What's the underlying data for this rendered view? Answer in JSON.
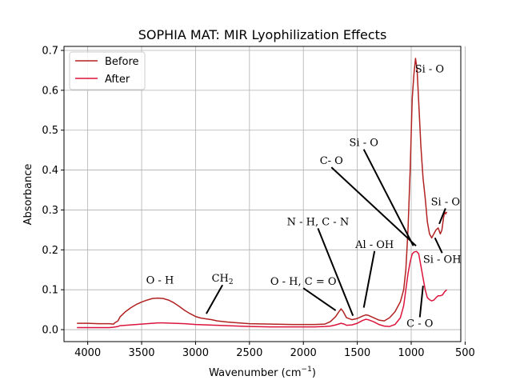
{
  "chart_data": {
    "type": "line",
    "title": "SOPHIA MAT: MIR Lyophilization Effects",
    "xlabel": "Wavenumber (cm",
    "xlabel_sup": "−1",
    "xlabel_close": ")",
    "ylabel": "Absorbance",
    "xlim": [
      4220,
      540
    ],
    "ylim": [
      -0.03,
      0.71
    ],
    "x_reversed": true,
    "grid": true,
    "legend_position": "top-left",
    "x_ticks": [
      4000,
      3500,
      3000,
      2500,
      2000,
      1500,
      1000,
      500
    ],
    "x_tick_labels": [
      "4000",
      "3500",
      "3000",
      "2500",
      "2000",
      "1500",
      "1000",
      "500"
    ],
    "y_ticks": [
      0.0,
      0.1,
      0.2,
      0.3,
      0.4,
      0.5,
      0.6,
      0.7
    ],
    "y_tick_labels": [
      "0.0",
      "0.1",
      "0.2",
      "0.3",
      "0.4",
      "0.5",
      "0.6",
      "0.7"
    ],
    "series": [
      {
        "name": "Before",
        "color": "#b22222",
        "points": [
          [
            4100,
            0.016
          ],
          [
            4000,
            0.016
          ],
          [
            3900,
            0.015
          ],
          [
            3800,
            0.015
          ],
          [
            3760,
            0.014
          ],
          [
            3750,
            0.017
          ],
          [
            3720,
            0.022
          ],
          [
            3700,
            0.032
          ],
          [
            3650,
            0.045
          ],
          [
            3600,
            0.055
          ],
          [
            3550,
            0.063
          ],
          [
            3500,
            0.069
          ],
          [
            3450,
            0.074
          ],
          [
            3400,
            0.078
          ],
          [
            3350,
            0.079
          ],
          [
            3300,
            0.078
          ],
          [
            3250,
            0.074
          ],
          [
            3200,
            0.067
          ],
          [
            3150,
            0.058
          ],
          [
            3100,
            0.048
          ],
          [
            3050,
            0.04
          ],
          [
            3000,
            0.033
          ],
          [
            2950,
            0.029
          ],
          [
            2900,
            0.027
          ],
          [
            2850,
            0.025
          ],
          [
            2800,
            0.022
          ],
          [
            2700,
            0.019
          ],
          [
            2600,
            0.017
          ],
          [
            2500,
            0.015
          ],
          [
            2300,
            0.014
          ],
          [
            2100,
            0.013
          ],
          [
            1900,
            0.013
          ],
          [
            1800,
            0.014
          ],
          [
            1750,
            0.02
          ],
          [
            1700,
            0.033
          ],
          [
            1670,
            0.045
          ],
          [
            1650,
            0.052
          ],
          [
            1630,
            0.045
          ],
          [
            1600,
            0.03
          ],
          [
            1550,
            0.025
          ],
          [
            1500,
            0.028
          ],
          [
            1450,
            0.034
          ],
          [
            1420,
            0.037
          ],
          [
            1400,
            0.036
          ],
          [
            1350,
            0.03
          ],
          [
            1300,
            0.024
          ],
          [
            1250,
            0.022
          ],
          [
            1200,
            0.03
          ],
          [
            1150,
            0.045
          ],
          [
            1100,
            0.07
          ],
          [
            1070,
            0.1
          ],
          [
            1050,
            0.15
          ],
          [
            1030,
            0.25
          ],
          [
            1010,
            0.4
          ],
          [
            990,
            0.58
          ],
          [
            975,
            0.64
          ],
          [
            960,
            0.68
          ],
          [
            945,
            0.65
          ],
          [
            930,
            0.57
          ],
          [
            910,
            0.46
          ],
          [
            890,
            0.38
          ],
          [
            870,
            0.33
          ],
          [
            850,
            0.27
          ],
          [
            830,
            0.24
          ],
          [
            810,
            0.23
          ],
          [
            790,
            0.24
          ],
          [
            770,
            0.25
          ],
          [
            750,
            0.255
          ],
          [
            730,
            0.24
          ],
          [
            715,
            0.25
          ],
          [
            700,
            0.28
          ],
          [
            690,
            0.295
          ],
          [
            680,
            0.29
          ],
          [
            670,
            0.295
          ]
        ]
      },
      {
        "name": "After",
        "color": "#dc143c",
        "points": [
          [
            4100,
            0.005
          ],
          [
            4000,
            0.005
          ],
          [
            3900,
            0.005
          ],
          [
            3800,
            0.005
          ],
          [
            3760,
            0.006
          ],
          [
            3720,
            0.008
          ],
          [
            3700,
            0.01
          ],
          [
            3600,
            0.012
          ],
          [
            3500,
            0.014
          ],
          [
            3400,
            0.016
          ],
          [
            3350,
            0.017
          ],
          [
            3300,
            0.017
          ],
          [
            3200,
            0.016
          ],
          [
            3100,
            0.015
          ],
          [
            3000,
            0.013
          ],
          [
            2900,
            0.012
          ],
          [
            2800,
            0.011
          ],
          [
            2700,
            0.01
          ],
          [
            2600,
            0.009
          ],
          [
            2500,
            0.008
          ],
          [
            2300,
            0.007
          ],
          [
            2100,
            0.007
          ],
          [
            1900,
            0.007
          ],
          [
            1800,
            0.008
          ],
          [
            1750,
            0.009
          ],
          [
            1700,
            0.012
          ],
          [
            1650,
            0.016
          ],
          [
            1620,
            0.014
          ],
          [
            1600,
            0.011
          ],
          [
            1550,
            0.012
          ],
          [
            1500,
            0.016
          ],
          [
            1450,
            0.023
          ],
          [
            1420,
            0.026
          ],
          [
            1400,
            0.025
          ],
          [
            1350,
            0.02
          ],
          [
            1300,
            0.013
          ],
          [
            1250,
            0.009
          ],
          [
            1200,
            0.008
          ],
          [
            1150,
            0.013
          ],
          [
            1100,
            0.03
          ],
          [
            1070,
            0.06
          ],
          [
            1050,
            0.1
          ],
          [
            1030,
            0.14
          ],
          [
            1010,
            0.17
          ],
          [
            990,
            0.19
          ],
          [
            970,
            0.195
          ],
          [
            950,
            0.196
          ],
          [
            930,
            0.19
          ],
          [
            910,
            0.16
          ],
          [
            890,
            0.13
          ],
          [
            870,
            0.1
          ],
          [
            850,
            0.08
          ],
          [
            830,
            0.075
          ],
          [
            810,
            0.072
          ],
          [
            790,
            0.074
          ],
          [
            770,
            0.08
          ],
          [
            750,
            0.085
          ],
          [
            730,
            0.085
          ],
          [
            710,
            0.087
          ],
          [
            690,
            0.095
          ],
          [
            670,
            0.1
          ]
        ]
      }
    ],
    "annotations": [
      {
        "text": "O - H",
        "x": 3330,
        "y": 0.115
      },
      {
        "text": "CH",
        "sub": "2",
        "x": 2750,
        "y": 0.12,
        "arrow_to": [
          2900,
          0.04
        ]
      },
      {
        "text": "O - H, C = O",
        "x": 2000,
        "y": 0.112,
        "arrow_to": [
          1700,
          0.048
        ]
      },
      {
        "text": "N - H, C - N",
        "x": 1865,
        "y": 0.262,
        "arrow_to": [
          1540,
          0.035
        ]
      },
      {
        "text": "Al - OH",
        "x": 1340,
        "y": 0.205,
        "arrow_to": [
          1440,
          0.055
        ]
      },
      {
        "text": "C-  O",
        "x": 1740,
        "y": 0.415,
        "arrow_to": [
          955,
          0.21
        ]
      },
      {
        "text": "Si - O",
        "x": 1440,
        "y": 0.46,
        "arrow_to": [
          980,
          0.21
        ]
      },
      {
        "text": "Si - O",
        "x": 830,
        "y": 0.645
      },
      {
        "text": "Si - O",
        "x": 682,
        "y": 0.312,
        "arrow_to": [
          740,
          0.265
        ]
      },
      {
        "text": "Si - OH",
        "x": 713,
        "y": 0.168,
        "arrow_to": [
          780,
          0.23
        ]
      },
      {
        "text": "C - O",
        "x": 920,
        "y": 0.007,
        "arrow_to": [
          890,
          0.11
        ]
      }
    ]
  }
}
